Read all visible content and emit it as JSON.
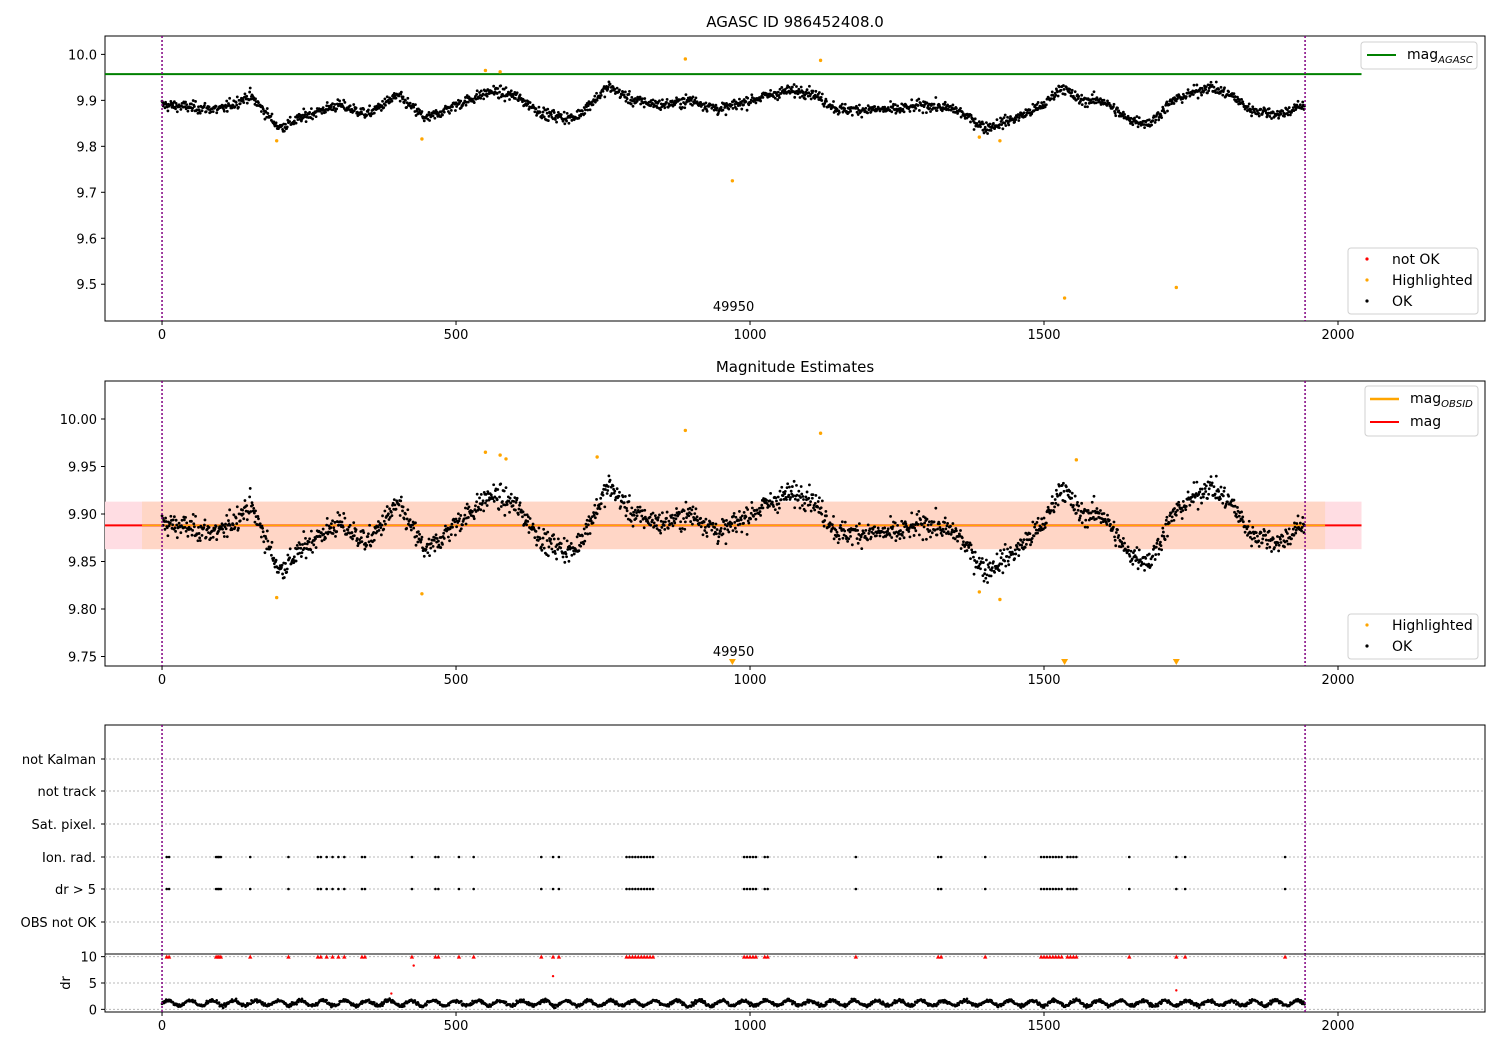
{
  "colors": {
    "ok": "#000000",
    "highlighted": "#ffa500",
    "not_ok": "#ff0000",
    "agasc_line": "#008000",
    "mag_line": "#ff0000",
    "mag_obsid_line": "#ffa500",
    "band_outer": "#ffdde3",
    "band_inner": "#ffd6c6",
    "obsid_boundary": "#800080"
  },
  "chart_data": [
    {
      "type": "scatter",
      "title": "AGASC ID 986452408.0",
      "xlabel": "",
      "ylabel": "",
      "xlim": [
        -97,
        2250
      ],
      "ylim": [
        9.42,
        10.04
      ],
      "xticks": [
        "0",
        "500",
        "1000",
        "1500",
        "2000"
      ],
      "yticks": [
        "9.5",
        "9.6",
        "9.7",
        "9.8",
        "9.9",
        "10.0"
      ],
      "obsid_boundaries": [
        0,
        1944
      ],
      "obsid_label": {
        "text": "49950",
        "x": 972
      },
      "mag_agasc": 9.957,
      "mag_agasc_x_range": [
        -97,
        2040
      ],
      "ok_series": {
        "name": "OK",
        "n_points": 1944,
        "baseline": 9.89,
        "knots": [
          [
            0,
            9.89
          ],
          [
            100,
            9.88
          ],
          [
            150,
            9.91
          ],
          [
            200,
            9.84
          ],
          [
            250,
            9.87
          ],
          [
            300,
            9.89
          ],
          [
            350,
            9.87
          ],
          [
            400,
            9.91
          ],
          [
            450,
            9.86
          ],
          [
            500,
            9.89
          ],
          [
            560,
            9.92
          ],
          [
            600,
            9.91
          ],
          [
            650,
            9.87
          ],
          [
            700,
            9.86
          ],
          [
            760,
            9.93
          ],
          [
            800,
            9.9
          ],
          [
            850,
            9.89
          ],
          [
            900,
            9.9
          ],
          [
            950,
            9.88
          ],
          [
            1000,
            9.9
          ],
          [
            1060,
            9.92
          ],
          [
            1100,
            9.92
          ],
          [
            1150,
            9.88
          ],
          [
            1200,
            9.88
          ],
          [
            1250,
            9.88
          ],
          [
            1300,
            9.89
          ],
          [
            1350,
            9.88
          ],
          [
            1400,
            9.84
          ],
          [
            1450,
            9.86
          ],
          [
            1500,
            9.89
          ],
          [
            1530,
            9.93
          ],
          [
            1560,
            9.9
          ],
          [
            1600,
            9.9
          ],
          [
            1640,
            9.86
          ],
          [
            1680,
            9.85
          ],
          [
            1720,
            9.9
          ],
          [
            1780,
            9.93
          ],
          [
            1820,
            9.91
          ],
          [
            1850,
            9.88
          ],
          [
            1900,
            9.87
          ],
          [
            1944,
            9.89
          ]
        ]
      },
      "highlighted_series": {
        "name": "Highlighted",
        "points": [
          [
            195,
            9.812
          ],
          [
            442,
            9.816
          ],
          [
            550,
            9.965
          ],
          [
            575,
            9.962
          ],
          [
            890,
            9.99
          ],
          [
            970,
            9.725
          ],
          [
            1120,
            9.987
          ],
          [
            1390,
            9.82
          ],
          [
            1425,
            9.812
          ],
          [
            1535,
            9.47
          ],
          [
            1725,
            9.493
          ]
        ]
      },
      "legend_top": [
        "mag_AGASC"
      ],
      "legend_bottom": [
        "not OK",
        "Highlighted",
        "OK"
      ]
    },
    {
      "type": "scatter",
      "title": "Magnitude Estimates",
      "xlabel": "",
      "ylabel": "",
      "xlim": [
        -97,
        2250
      ],
      "ylim": [
        9.74,
        10.04
      ],
      "xticks": [
        "0",
        "500",
        "1000",
        "1500",
        "2000"
      ],
      "yticks": [
        "9.75",
        "9.80",
        "9.85",
        "9.90",
        "9.95",
        "10.00"
      ],
      "obsid_boundaries": [
        0,
        1944
      ],
      "obsid_label": {
        "text": "49950",
        "x": 972
      },
      "mag": 9.888,
      "mag_obsid": 9.888,
      "band_outer": [
        9.863,
        9.913
      ],
      "band_inner": [
        9.863,
        9.913
      ],
      "band_x_range": [
        -97,
        2040
      ],
      "highlighted_series": {
        "name": "Highlighted",
        "points": [
          [
            195,
            9.812
          ],
          [
            442,
            9.816
          ],
          [
            550,
            9.965
          ],
          [
            575,
            9.962
          ],
          [
            585,
            9.958
          ],
          [
            740,
            9.96
          ],
          [
            890,
            9.988
          ],
          [
            1120,
            9.985
          ],
          [
            1390,
            9.818
          ],
          [
            1425,
            9.81
          ],
          [
            1555,
            9.957
          ]
        ]
      },
      "below_range_markers": [
        970,
        1535,
        1725
      ],
      "legend_top": [
        "mag_OBSID",
        "mag"
      ],
      "legend_bottom": [
        "Highlighted",
        "OK"
      ]
    },
    {
      "type": "scatter",
      "title": "",
      "xlim": [
        -97,
        2250
      ],
      "xticks": [
        "0",
        "500",
        "1000",
        "1500",
        "2000"
      ],
      "obsid_boundaries": [
        0,
        1944
      ],
      "flag_rows": [
        "not Kalman",
        "not track",
        "Sat. pixel.",
        "Ion. rad.",
        "dr > 5",
        "OBS not OK"
      ],
      "flag_rows_with_points": [
        "Ion. rad.",
        "dr > 5"
      ],
      "flag_x": [
        8,
        12,
        92,
        95,
        97,
        100,
        150,
        215,
        265,
        270,
        280,
        290,
        300,
        310,
        340,
        345,
        425,
        465,
        470,
        505,
        530,
        645,
        665,
        675,
        790,
        795,
        800,
        805,
        810,
        815,
        820,
        825,
        830,
        835,
        990,
        995,
        1000,
        1005,
        1010,
        1025,
        1030,
        1180,
        1320,
        1325,
        1400,
        1495,
        1500,
        1505,
        1510,
        1515,
        1520,
        1525,
        1530,
        1540,
        1545,
        1550,
        1555,
        1645,
        1725,
        1740,
        1910
      ]
    },
    {
      "type": "scatter",
      "title": "",
      "ylabel": "dr",
      "xlim": [
        -97,
        2250
      ],
      "ylim": [
        -0.5,
        10.5
      ],
      "xticks": [
        "0",
        "500",
        "1000",
        "1500",
        "2000"
      ],
      "yticks": [
        "0",
        "5",
        "10"
      ],
      "obsid_boundaries": [
        0,
        1944
      ],
      "dr_capped_x": [
        8,
        12,
        92,
        95,
        97,
        100,
        150,
        215,
        265,
        270,
        280,
        290,
        300,
        310,
        340,
        345,
        425,
        465,
        470,
        505,
        530,
        645,
        665,
        675,
        790,
        795,
        800,
        805,
        810,
        815,
        820,
        825,
        830,
        835,
        990,
        995,
        1000,
        1005,
        1010,
        1025,
        1030,
        1180,
        1320,
        1325,
        1400,
        1495,
        1500,
        1505,
        1510,
        1515,
        1520,
        1525,
        1530,
        1540,
        1545,
        1550,
        1555,
        1645,
        1725,
        1740,
        1910
      ],
      "dr_outliers": [
        [
          390,
          3.0
        ],
        [
          428,
          8.3
        ],
        [
          665,
          6.3
        ],
        [
          1725,
          3.6
        ]
      ],
      "dr_baseline": 1.2
    }
  ]
}
